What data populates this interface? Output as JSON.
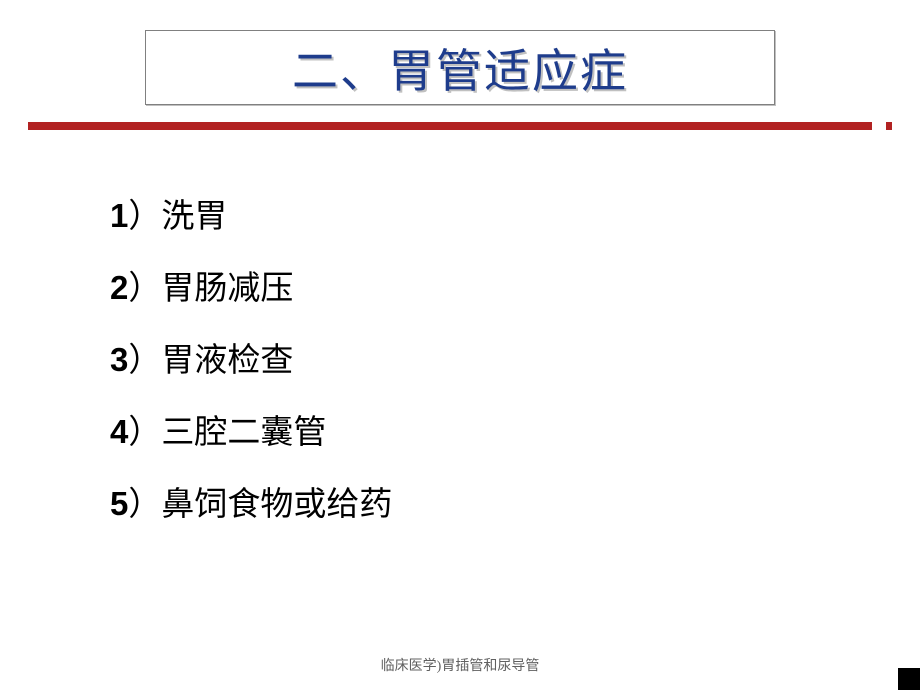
{
  "slide": {
    "title": "二、胃管适应症",
    "title_color": "#1e3c8c",
    "title_shadow": "#c0c0c0",
    "title_fontsize": 46,
    "title_box_border": "#808080",
    "accent_bar_color": "#b22222",
    "background_color": "#ffffff",
    "items": [
      {
        "num": "1",
        "text": "洗胃"
      },
      {
        "num": "2",
        "text": "胃肠减压"
      },
      {
        "num": "3",
        "text": "胃液检查"
      },
      {
        "num": "4",
        "text": "三腔二囊管"
      },
      {
        "num": "5",
        "text": "鼻饲食物或给药"
      }
    ],
    "item_fontsize": 33,
    "item_color": "#000000",
    "footer": "临床医学)胃插管和尿导管",
    "footer_color": "#606060",
    "footer_fontsize": 14
  }
}
